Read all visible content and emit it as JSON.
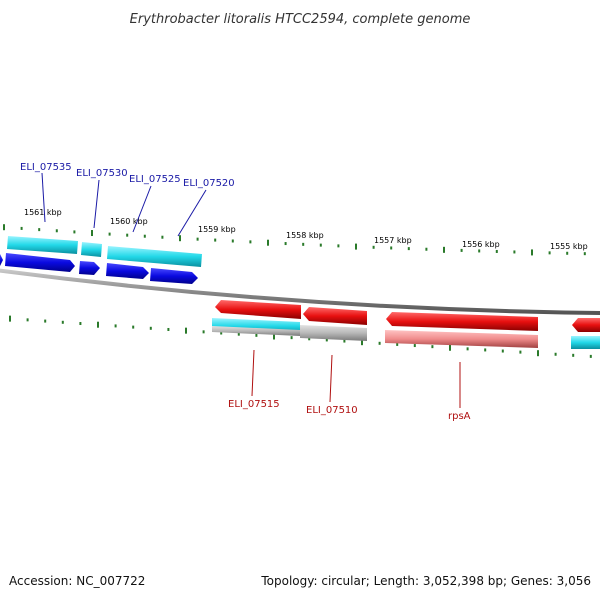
{
  "title": "Erythrobacter litoralis HTCC2594, complete genome",
  "footer": {
    "accession": "Accession: NC_007722",
    "summary": "Topology: circular; Length: 3,052,398 bp; Genes: 3,056"
  },
  "colors": {
    "backbone": "#8a8a8a",
    "tick": "#2a7a2a",
    "forward_cds": "#0a0ae0",
    "forward_gene": "#22d8e8",
    "reverse_cds": "#e81010",
    "reverse_gene": "#f08c8c",
    "other_gene": "#b8b8b8",
    "label_top": "#1a1aa6",
    "label_bottom": "#b01010"
  },
  "kbp_labels": [
    "1561 kbp",
    "1560 kbp",
    "1559 kbp",
    "1558 kbp",
    "1557 kbp",
    "1556 kbp",
    "1555 kbp"
  ],
  "top_gene_labels": [
    "ELI_07535",
    "ELI_07530",
    "ELI_07525",
    "ELI_07520"
  ],
  "bottom_gene_labels": [
    "ELI_07515",
    "ELI_07510",
    "rpsA"
  ]
}
